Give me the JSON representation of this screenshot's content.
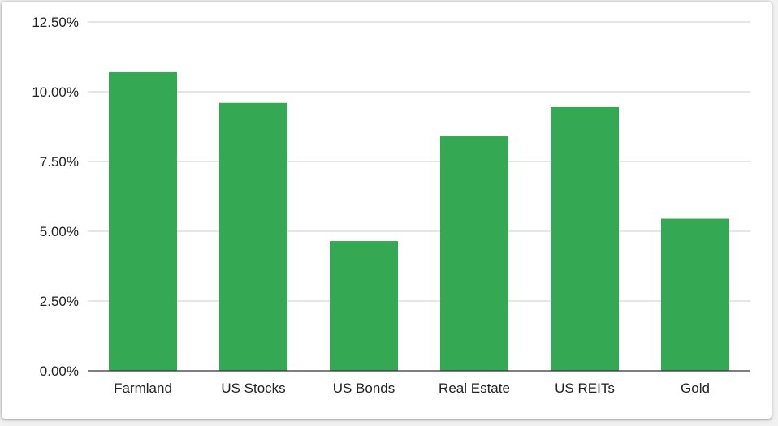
{
  "colors": {
    "bar": "#34a853",
    "grid": "#cccccc",
    "axis": "#333333",
    "text": "#222222"
  },
  "chart_data": {
    "type": "bar",
    "title": "",
    "xlabel": "",
    "ylabel": "",
    "categories": [
      "Farmland",
      "US Stocks",
      "US Bonds",
      "Real Estate",
      "US REITs",
      "Gold"
    ],
    "series": [
      {
        "values": [
          10.7,
          9.6,
          4.65,
          8.4,
          9.45,
          5.45
        ]
      }
    ],
    "ylim": [
      0,
      12.5
    ],
    "yticks": [
      0,
      2.5,
      5,
      7.5,
      10,
      12.5
    ],
    "ytick_labels": [
      "0.00%",
      "2.50%",
      "5.00%",
      "7.50%",
      "10.00%",
      "12.50%"
    ],
    "grid": true,
    "legend": "none"
  }
}
